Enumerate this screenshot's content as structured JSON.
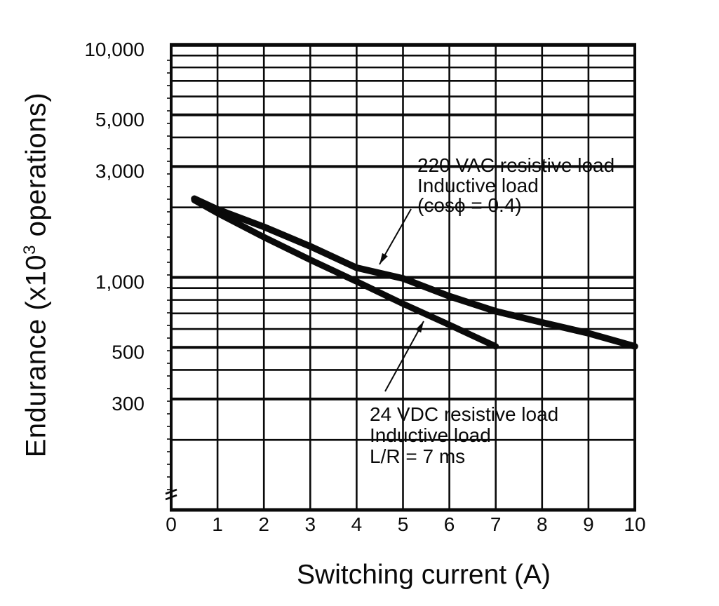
{
  "page": {
    "background": "#ffffff",
    "ink": "#0a0a0a"
  },
  "chart_data": {
    "type": "line",
    "title": "",
    "xlabel": "Switching current (A)",
    "ylabel": "Endurance (x10³ operations)",
    "grid": true,
    "legend_position": "inline-annotations",
    "x_axis": {
      "scale": "linear",
      "min": 0,
      "max": 10,
      "tick_labels": [
        "0",
        "1",
        "2",
        "3",
        "4",
        "5",
        "6",
        "7",
        "8",
        "9",
        "10"
      ],
      "gridlines": [
        1,
        2,
        3,
        4,
        5,
        6,
        7,
        8,
        9
      ]
    },
    "y_axis": {
      "scale": "log",
      "min": 100,
      "max": 10000,
      "unit": "x10^3 operations",
      "labeled_ticks": [
        {
          "value": 10000,
          "label": "10,000"
        },
        {
          "value": 5000,
          "label": "5,000"
        },
        {
          "value": 3000,
          "label": "3,000"
        },
        {
          "value": 1000,
          "label": "1,000"
        },
        {
          "value": 500,
          "label": "500"
        },
        {
          "value": 300,
          "label": "300"
        }
      ],
      "gridlines": [
        9000,
        8000,
        7000,
        6000,
        5000,
        4000,
        3000,
        2000,
        1000,
        900,
        800,
        700,
        600,
        500,
        400,
        300,
        200
      ],
      "has_axis_break_at_bottom": true
    },
    "series": [
      {
        "name": "220 VAC resistive load / Inductive load (cosϕ = 0.4)",
        "x": [
          0.5,
          1,
          2,
          3,
          4,
          5,
          6,
          7,
          8,
          9,
          10
        ],
        "values": [
          2180,
          1960,
          1650,
          1360,
          1100,
          990,
          830,
          715,
          640,
          575,
          505
        ]
      },
      {
        "name": "24 VDC resistive load / Inductive load L/R = 7 ms",
        "x": [
          0.5,
          1,
          2,
          3,
          4,
          5,
          6,
          7
        ],
        "values": [
          2150,
          1890,
          1490,
          1190,
          960,
          770,
          625,
          505
        ]
      }
    ]
  },
  "x_axis_title": "Switching current (A)",
  "y_axis_title": {
    "prefix": "Endurance (x10",
    "sup": "3",
    "suffix": " operations)"
  },
  "annotations": {
    "vac220": {
      "lines": [
        "220 VAC resistive load",
        "Inductive load",
        "(cosϕ = 0.4)"
      ]
    },
    "vdc24": {
      "lines": [
        "24 VDC resistive load",
        "Inductive load",
        "L/R = 7 ms"
      ]
    }
  }
}
